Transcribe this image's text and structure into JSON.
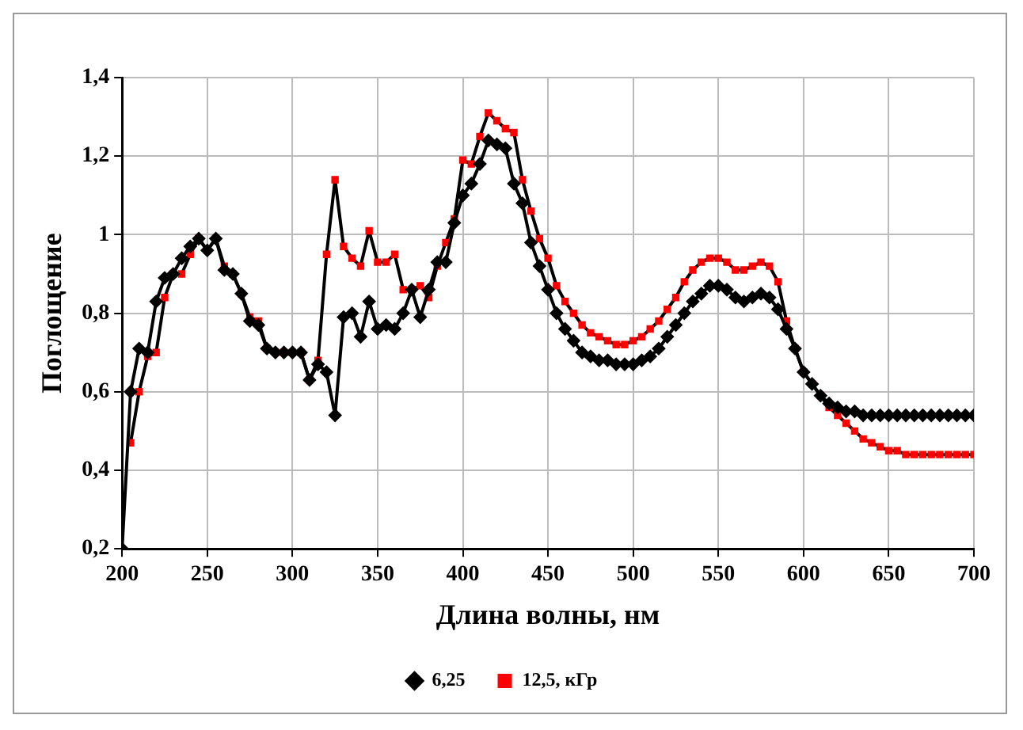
{
  "chart_data": {
    "type": "line",
    "xlabel": "Длина волны, нм",
    "ylabel": "Поглощение",
    "x": [
      200,
      205,
      210,
      215,
      220,
      225,
      230,
      235,
      240,
      245,
      250,
      255,
      260,
      265,
      270,
      275,
      280,
      285,
      290,
      295,
      300,
      305,
      310,
      315,
      320,
      325,
      330,
      335,
      340,
      345,
      350,
      355,
      360,
      365,
      370,
      375,
      380,
      385,
      390,
      395,
      400,
      405,
      410,
      415,
      420,
      425,
      430,
      435,
      440,
      445,
      450,
      455,
      460,
      465,
      470,
      475,
      480,
      485,
      490,
      495,
      500,
      505,
      510,
      515,
      520,
      525,
      530,
      535,
      540,
      545,
      550,
      555,
      560,
      565,
      570,
      575,
      580,
      585,
      590,
      595,
      600,
      605,
      610,
      615,
      620,
      625,
      630,
      635,
      640,
      645,
      650,
      655,
      660,
      665,
      670,
      675,
      680,
      685,
      690,
      695,
      700
    ],
    "series": [
      {
        "name": "6,25",
        "color": "#000000",
        "marker": "diamond",
        "values": [
          0.2,
          0.6,
          0.71,
          0.7,
          0.83,
          0.89,
          0.9,
          0.94,
          0.97,
          0.99,
          0.96,
          0.99,
          0.91,
          0.9,
          0.85,
          0.78,
          0.77,
          0.71,
          0.7,
          0.7,
          0.7,
          0.7,
          0.63,
          0.67,
          0.65,
          0.54,
          0.79,
          0.8,
          0.74,
          0.83,
          0.76,
          0.77,
          0.76,
          0.8,
          0.86,
          0.79,
          0.86,
          0.93,
          0.93,
          1.03,
          1.1,
          1.13,
          1.18,
          1.24,
          1.23,
          1.22,
          1.13,
          1.08,
          0.98,
          0.92,
          0.86,
          0.8,
          0.76,
          0.73,
          0.7,
          0.69,
          0.68,
          0.68,
          0.67,
          0.67,
          0.67,
          0.68,
          0.69,
          0.71,
          0.74,
          0.77,
          0.8,
          0.83,
          0.85,
          0.87,
          0.87,
          0.86,
          0.84,
          0.83,
          0.84,
          0.85,
          0.84,
          0.81,
          0.76,
          0.71,
          0.65,
          0.62,
          0.59,
          0.57,
          0.56,
          0.55,
          0.55,
          0.54,
          0.54,
          0.54,
          0.54,
          0.54,
          0.54,
          0.54,
          0.54,
          0.54,
          0.54,
          0.54,
          0.54,
          0.54,
          0.54
        ]
      },
      {
        "name": "12,5, кГр",
        "color": "#ff0000",
        "marker": "square",
        "values": [
          null,
          0.47,
          0.6,
          0.69,
          0.7,
          0.84,
          0.9,
          0.9,
          0.95,
          0.99,
          0.96,
          0.99,
          0.92,
          0.9,
          0.85,
          0.79,
          0.78,
          0.71,
          0.7,
          0.7,
          0.7,
          0.7,
          0.63,
          0.68,
          0.95,
          1.14,
          0.97,
          0.94,
          0.92,
          1.01,
          0.93,
          0.93,
          0.95,
          0.86,
          0.86,
          0.87,
          0.84,
          0.92,
          0.98,
          1.04,
          1.19,
          1.18,
          1.25,
          1.31,
          1.29,
          1.27,
          1.26,
          1.14,
          1.06,
          0.99,
          0.94,
          0.87,
          0.83,
          0.8,
          0.77,
          0.75,
          0.74,
          0.73,
          0.72,
          0.72,
          0.73,
          0.74,
          0.76,
          0.78,
          0.81,
          0.84,
          0.88,
          0.91,
          0.93,
          0.94,
          0.94,
          0.93,
          0.91,
          0.91,
          0.92,
          0.93,
          0.92,
          0.88,
          0.78,
          0.71,
          0.65,
          0.62,
          0.59,
          0.56,
          0.54,
          0.52,
          0.5,
          0.48,
          0.47,
          0.46,
          0.45,
          0.45,
          0.44,
          0.44,
          0.44,
          0.44,
          0.44,
          0.44,
          0.44,
          0.44,
          0.44
        ]
      }
    ],
    "xlim": [
      200,
      700
    ],
    "xticks": [
      200,
      250,
      300,
      350,
      400,
      450,
      500,
      550,
      600,
      650,
      700
    ],
    "ylim": [
      0.2,
      1.4
    ],
    "yticks": [
      {
        "value": 0.2,
        "label": "0,2"
      },
      {
        "value": 0.4,
        "label": "0,4"
      },
      {
        "value": 0.6,
        "label": "0,6"
      },
      {
        "value": 0.8,
        "label": "0,8"
      },
      {
        "value": 1,
        "label": "1"
      },
      {
        "value": 1.2,
        "label": "1,2"
      },
      {
        "value": 1.4,
        "label": "1,4"
      }
    ],
    "grid": true,
    "legend": "bottom",
    "line_style": "solid"
  }
}
